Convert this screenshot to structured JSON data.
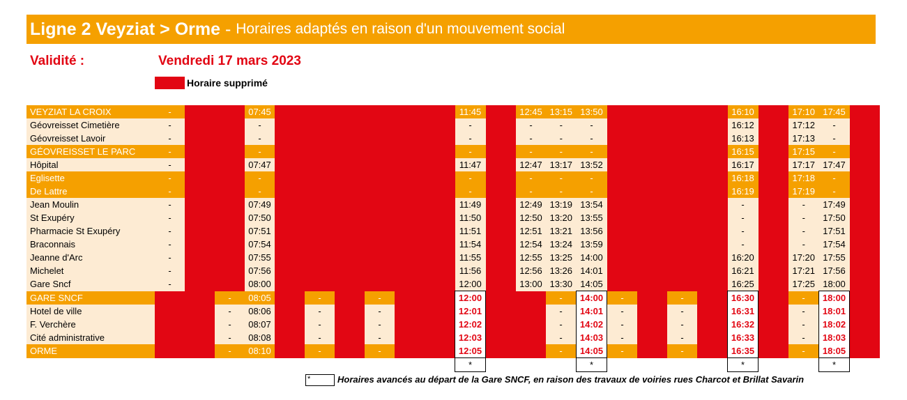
{
  "title": {
    "line": "Ligne 2 Veyziat > Orme",
    "dash": " - ",
    "subtitle": "Horaires adaptés en raison d'un mouvement social"
  },
  "validity": {
    "label": "Validité :",
    "date": "Vendredi 17 mars 2023"
  },
  "legend": {
    "suppressed_label": "Horaire supprimé",
    "suppressed_color": "#e20613"
  },
  "colors": {
    "main_stop": "#f5a000",
    "stop_row": "#fdebd3",
    "suppressed": "#e20613"
  },
  "columns": 24,
  "rows": [
    {
      "stop": "VEYZIAT LA CROIX",
      "main": true,
      "cells": [
        "-",
        "S",
        "S",
        "07:45",
        "S",
        "S",
        "S",
        "S",
        "S",
        "S",
        "11:45",
        "S",
        "12:45",
        "13:15",
        "13:50",
        "S",
        "S",
        "S",
        "S",
        "16:10",
        "S",
        "17:10",
        "17:45",
        "S"
      ]
    },
    {
      "stop": "Géovreisset Cimetière",
      "main": false,
      "cells": [
        "-",
        "S",
        "S",
        "-",
        "S",
        "S",
        "S",
        "S",
        "S",
        "S",
        "-",
        "S",
        "-",
        "-",
        "-",
        "S",
        "S",
        "S",
        "S",
        "16:12",
        "S",
        "17:12",
        "-",
        "S"
      ]
    },
    {
      "stop": "Géovreisset Lavoir",
      "main": false,
      "cells": [
        "-",
        "S",
        "S",
        "-",
        "S",
        "S",
        "S",
        "S",
        "S",
        "S",
        "-",
        "S",
        "-",
        "-",
        "-",
        "S",
        "S",
        "S",
        "S",
        "16:13",
        "S",
        "17:13",
        "-",
        "S"
      ]
    },
    {
      "stop": "GÉOVREISSET LE PARC",
      "main": true,
      "cells": [
        "-",
        "S",
        "S",
        "-",
        "S",
        "S",
        "S",
        "S",
        "S",
        "S",
        "-",
        "S",
        "-",
        "-",
        "-",
        "S",
        "S",
        "S",
        "S",
        "16:15",
        "S",
        "17:15",
        "-",
        "S"
      ]
    },
    {
      "stop": "Hôpital",
      "main": false,
      "cells": [
        "-",
        "S",
        "S",
        "07:47",
        "S",
        "S",
        "S",
        "S",
        "S",
        "S",
        "11:47",
        "S",
        "12:47",
        "13:17",
        "13:52",
        "S",
        "S",
        "S",
        "S",
        "16:17",
        "S",
        "17:17",
        "17:47",
        "S"
      ]
    },
    {
      "stop": "Eglisette",
      "main": true,
      "cells": [
        "-",
        "S",
        "S",
        "-",
        "S",
        "S",
        "S",
        "S",
        "S",
        "S",
        "-",
        "S",
        "-",
        "-",
        "-",
        "S",
        "S",
        "S",
        "S",
        "16:18",
        "S",
        "17:18",
        "-",
        "S"
      ]
    },
    {
      "stop": "De Lattre",
      "main": true,
      "cells": [
        "-",
        "S",
        "S",
        "-",
        "S",
        "S",
        "S",
        "S",
        "S",
        "S",
        "-",
        "S",
        "-",
        "-",
        "-",
        "S",
        "S",
        "S",
        "S",
        "16:19",
        "S",
        "17:19",
        "-",
        "S"
      ]
    },
    {
      "stop": "Jean Moulin",
      "main": false,
      "cells": [
        "-",
        "S",
        "S",
        "07:49",
        "S",
        "S",
        "S",
        "S",
        "S",
        "S",
        "11:49",
        "S",
        "12:49",
        "13:19",
        "13:54",
        "S",
        "S",
        "S",
        "S",
        "-",
        "S",
        "-",
        "17:49",
        "S"
      ]
    },
    {
      "stop": "St Exupéry",
      "main": false,
      "cells": [
        "-",
        "S",
        "S",
        "07:50",
        "S",
        "S",
        "S",
        "S",
        "S",
        "S",
        "11:50",
        "S",
        "12:50",
        "13:20",
        "13:55",
        "S",
        "S",
        "S",
        "S",
        "-",
        "S",
        "-",
        "17:50",
        "S"
      ]
    },
    {
      "stop": "Pharmacie St Exupéry",
      "main": false,
      "cells": [
        "-",
        "S",
        "S",
        "07:51",
        "S",
        "S",
        "S",
        "S",
        "S",
        "S",
        "11:51",
        "S",
        "12:51",
        "13:21",
        "13:56",
        "S",
        "S",
        "S",
        "S",
        "-",
        "S",
        "-",
        "17:51",
        "S"
      ]
    },
    {
      "stop": "Braconnais",
      "main": false,
      "cells": [
        "-",
        "S",
        "S",
        "07:54",
        "S",
        "S",
        "S",
        "S",
        "S",
        "S",
        "11:54",
        "S",
        "12:54",
        "13:24",
        "13:59",
        "S",
        "S",
        "S",
        "S",
        "-",
        "S",
        "-",
        "17:54",
        "S"
      ]
    },
    {
      "stop": "Jeanne d'Arc",
      "main": false,
      "cells": [
        "-",
        "S",
        "S",
        "07:55",
        "S",
        "S",
        "S",
        "S",
        "S",
        "S",
        "11:55",
        "S",
        "12:55",
        "13:25",
        "14:00",
        "S",
        "S",
        "S",
        "S",
        "16:20",
        "S",
        "17:20",
        "17:55",
        "S"
      ]
    },
    {
      "stop": "Michelet",
      "main": false,
      "cells": [
        "-",
        "S",
        "S",
        "07:56",
        "S",
        "S",
        "S",
        "S",
        "S",
        "S",
        "11:56",
        "S",
        "12:56",
        "13:26",
        "14:01",
        "S",
        "S",
        "S",
        "S",
        "16:21",
        "S",
        "17:21",
        "17:56",
        "S"
      ]
    },
    {
      "stop": "Gare Sncf",
      "main": false,
      "cells": [
        "-",
        "S",
        "S",
        "08:00",
        "S",
        "S",
        "S",
        "S",
        "S",
        "S",
        "12:00",
        "S",
        "13:00",
        "13:30",
        "14:05",
        "S",
        "S",
        "S",
        "S",
        "16:25",
        "S",
        "17:25",
        "18:00",
        "S"
      ]
    },
    {
      "stop": "GARE SNCF",
      "main": true,
      "cells": [
        "S",
        "S",
        "-",
        "08:05",
        "S",
        "-",
        "S",
        "-",
        "S",
        "S",
        "B:12:00",
        "S",
        "S",
        "-",
        "B:14:00",
        "-",
        "S",
        "-",
        "S",
        "B:16:30",
        "S",
        "-",
        "B:18:00",
        "S"
      ]
    },
    {
      "stop": "Hotel de ville",
      "main": false,
      "cells": [
        "S",
        "S",
        "-",
        "08:06",
        "S",
        "-",
        "S",
        "-",
        "S",
        "S",
        "B:12:01",
        "S",
        "S",
        "-",
        "B:14:01",
        "-",
        "S",
        "-",
        "S",
        "B:16:31",
        "S",
        "-",
        "B:18:01",
        "S"
      ]
    },
    {
      "stop": "F. Verchère",
      "main": false,
      "cells": [
        "S",
        "S",
        "-",
        "08:07",
        "S",
        "-",
        "S",
        "-",
        "S",
        "S",
        "B:12:02",
        "S",
        "S",
        "-",
        "B:14:02",
        "-",
        "S",
        "-",
        "S",
        "B:16:32",
        "S",
        "-",
        "B:18:02",
        "S"
      ]
    },
    {
      "stop": "Cité administrative",
      "main": false,
      "cells": [
        "S",
        "S",
        "-",
        "08:08",
        "S",
        "-",
        "S",
        "-",
        "S",
        "S",
        "B:12:03",
        "S",
        "S",
        "-",
        "B:14:03",
        "-",
        "S",
        "-",
        "S",
        "B:16:33",
        "S",
        "-",
        "B:18:03",
        "S"
      ]
    },
    {
      "stop": "ORME",
      "main": true,
      "cells": [
        "S",
        "S",
        "-",
        "08:10",
        "S",
        "-",
        "S",
        "-",
        "S",
        "S",
        "B:12:05",
        "S",
        "S",
        "-",
        "B:14:05",
        "-",
        "S",
        "-",
        "S",
        "B:16:35",
        "S",
        "-",
        "B:18:05",
        "S"
      ]
    }
  ],
  "star_columns": [
    10,
    14,
    19,
    22
  ],
  "star_mark": "*",
  "footnote": {
    "marker": "*",
    "text": "Horaires avancés au départ de la Gare SNCF, en raison des travaux de voiries rues Charcot et Brillat Savarin"
  }
}
